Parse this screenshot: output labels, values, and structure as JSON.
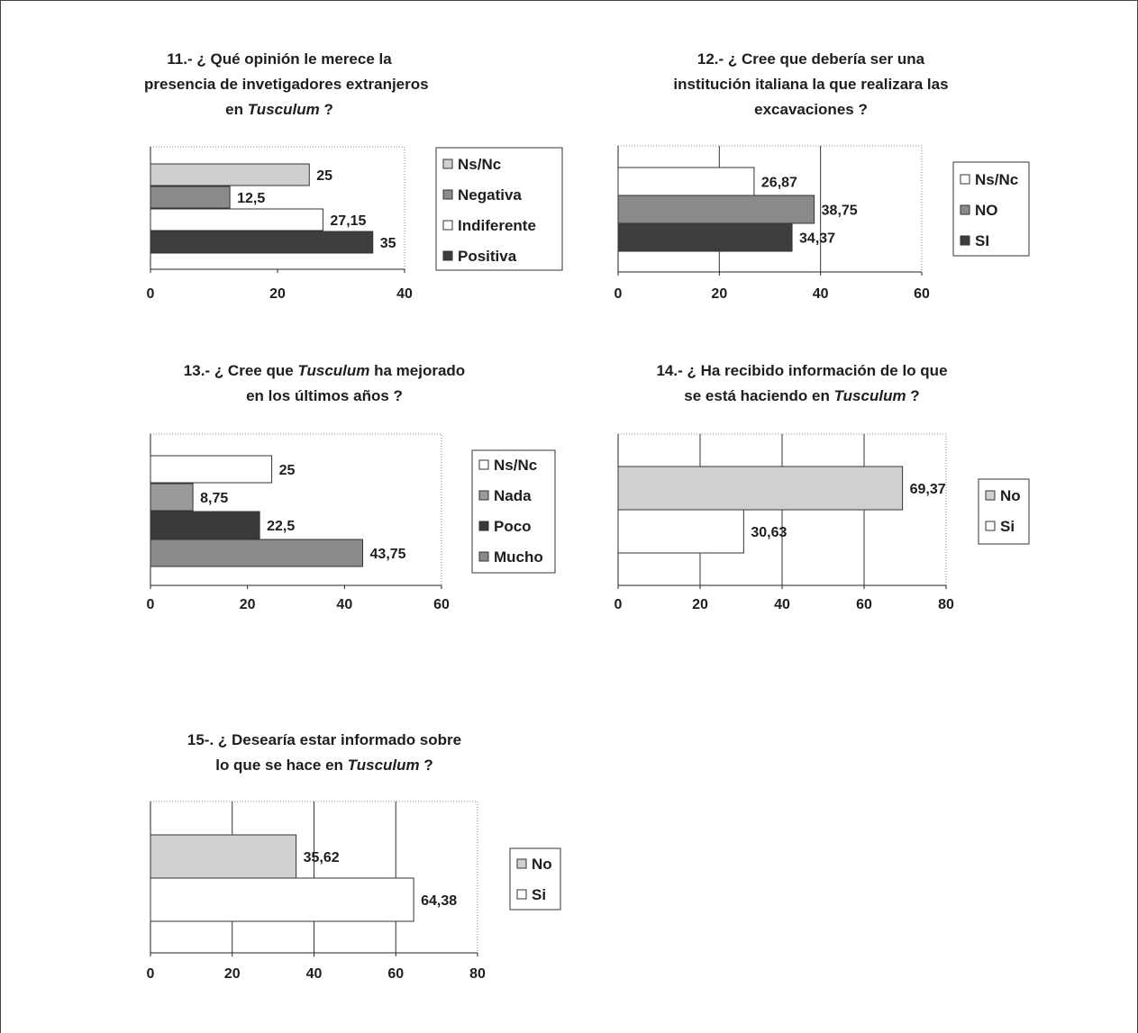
{
  "chart_data": [
    {
      "type": "bar",
      "orientation": "horizontal",
      "title_lines": [
        "11.- ¿ Qué opinión le merece la",
        "presencia de invetigadores extranjeros",
        "en |Tusculum| ?"
      ],
      "categories": [
        "Ns/Nc",
        "Negativa",
        "Indiferente",
        "Positiva"
      ],
      "values": [
        25,
        12.5,
        27.15,
        35
      ],
      "value_labels": [
        "25",
        "12,5",
        "27,15",
        "35"
      ],
      "colors": [
        "#cfcfcf",
        "#8a8a8a",
        "#ffffff",
        "#3e3e3e"
      ],
      "xlim": [
        0,
        40
      ],
      "xticks": [
        0,
        20,
        40
      ],
      "grid": false,
      "legend": "right"
    },
    {
      "type": "bar",
      "orientation": "horizontal",
      "title_lines": [
        "12.- ¿ Cree que debería ser una",
        "institución italiana la que realizara las",
        "excavaciones ?"
      ],
      "categories": [
        "Ns/Nc",
        "NO",
        "SI"
      ],
      "values": [
        26.87,
        38.75,
        34.37
      ],
      "value_labels": [
        "26,87",
        "38,75",
        "34,37"
      ],
      "colors": [
        "#ffffff",
        "#8a8a8a",
        "#3e3e3e"
      ],
      "xlim": [
        0,
        60
      ],
      "xticks": [
        0,
        20,
        40,
        60
      ],
      "grid": true,
      "legend": "right"
    },
    {
      "type": "bar",
      "orientation": "horizontal",
      "title_lines": [
        "13.- ¿ Cree que |Tusculum|  ha mejorado",
        "en los últimos años ?"
      ],
      "categories": [
        "Ns/Nc",
        "Nada",
        "Poco",
        "Mucho"
      ],
      "values": [
        25,
        8.75,
        22.5,
        43.75
      ],
      "value_labels": [
        "25",
        "8,75",
        "22,5",
        "43,75"
      ],
      "colors": [
        "#ffffff",
        "#9a9a9a",
        "#3a3a3a",
        "#8a8a8a"
      ],
      "xlim": [
        0,
        60
      ],
      "xticks": [
        0,
        20,
        40,
        60
      ],
      "grid": false,
      "legend": "right"
    },
    {
      "type": "bar",
      "orientation": "horizontal",
      "title_lines": [
        "14.- ¿ Ha recibido información de lo que",
        "se está haciendo en |Tusculum| ?"
      ],
      "categories": [
        "No",
        "Si"
      ],
      "values": [
        69.37,
        30.63
      ],
      "value_labels": [
        "69,37",
        "30,63"
      ],
      "colors": [
        "#d0d0d0",
        "#ffffff"
      ],
      "xlim": [
        0,
        80
      ],
      "xticks": [
        0,
        20,
        40,
        60,
        80
      ],
      "grid": true,
      "legend": "right"
    },
    {
      "type": "bar",
      "orientation": "horizontal",
      "title_lines": [
        "15-. ¿ Desearía estar informado sobre",
        "lo que se hace en |Tusculum| ?"
      ],
      "categories": [
        "No",
        "Si"
      ],
      "values": [
        35.62,
        64.38
      ],
      "value_labels": [
        "35,62",
        "64,38"
      ],
      "colors": [
        "#d0d0d0",
        "#ffffff"
      ],
      "xlim": [
        0,
        80
      ],
      "xticks": [
        0,
        20,
        40,
        60,
        80
      ],
      "grid": true,
      "legend": "right"
    }
  ]
}
